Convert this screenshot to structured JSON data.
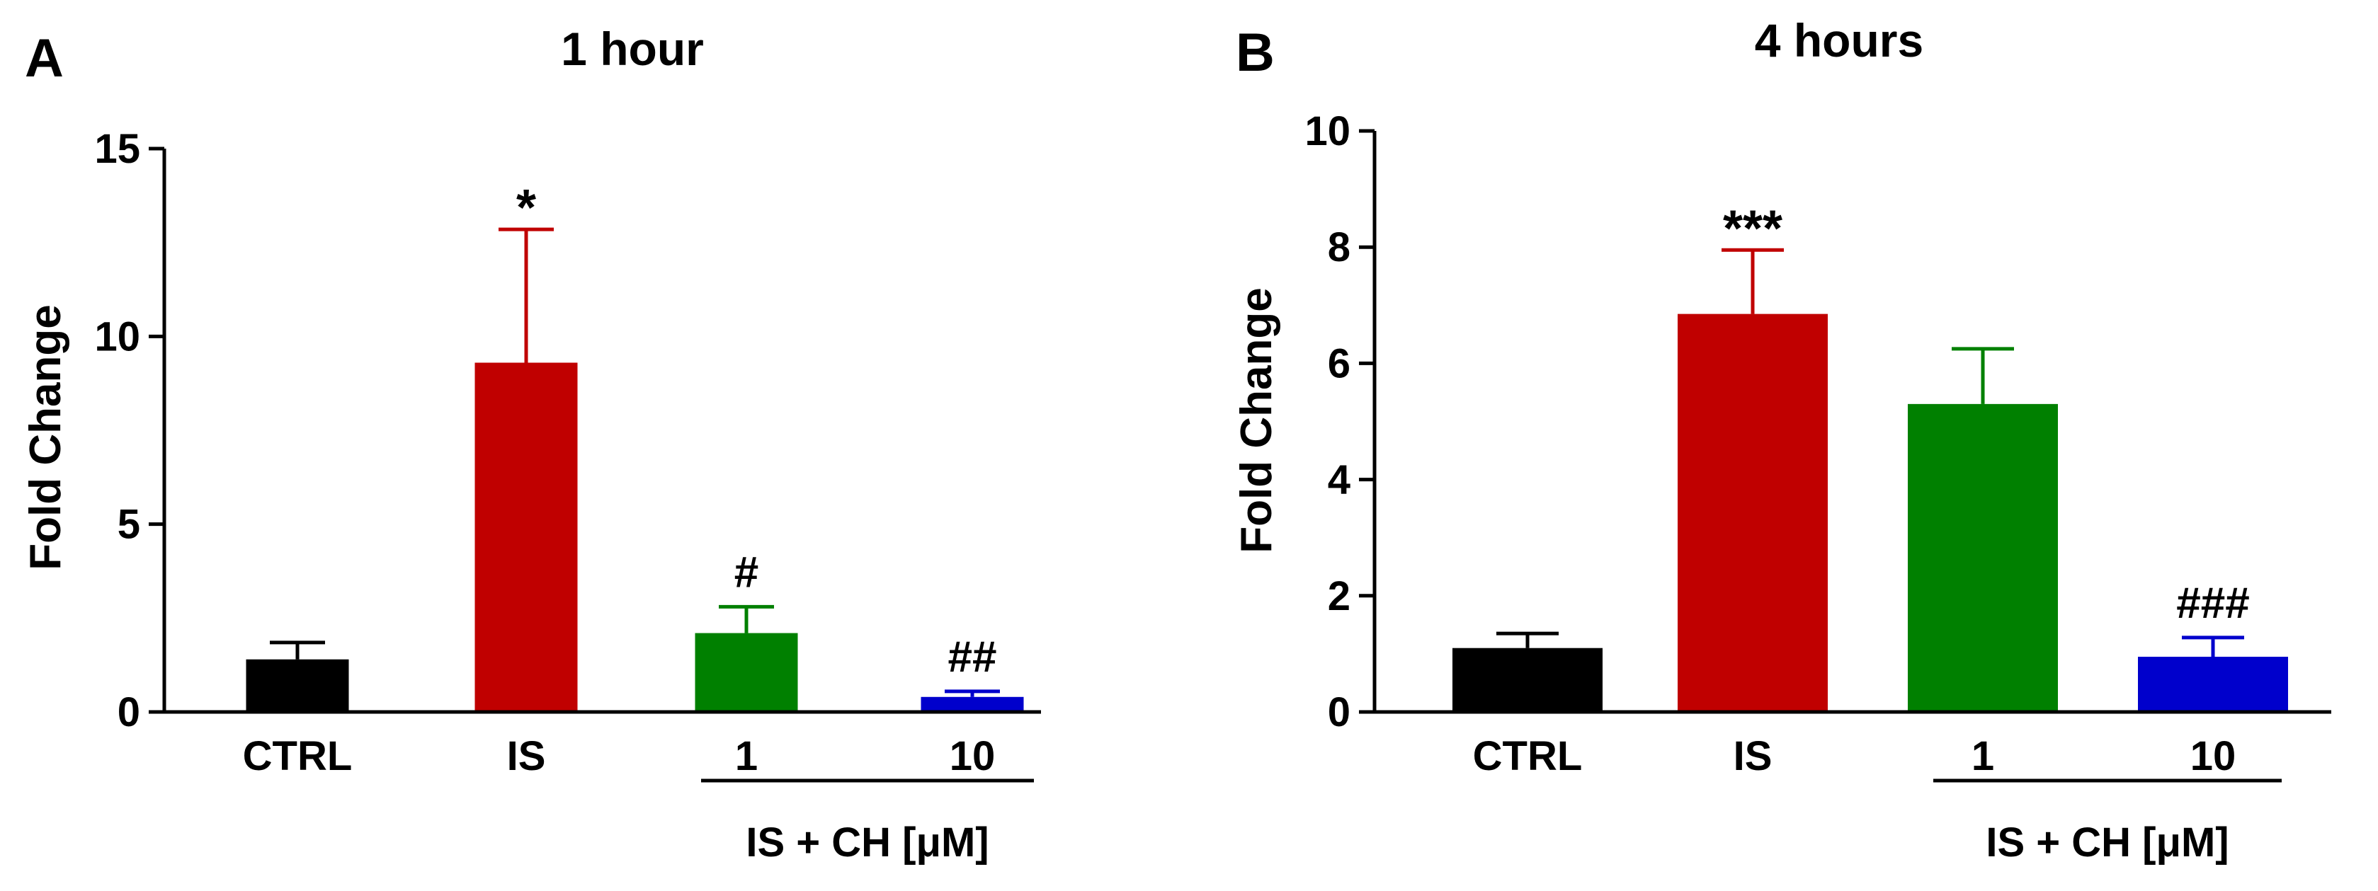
{
  "chart_data": [
    {
      "panel_label": "A",
      "type": "bar",
      "title": "1 hour",
      "xlabel": "",
      "ylabel": "Fold Change",
      "ylim": [
        0,
        15
      ],
      "yticks": [
        0,
        5,
        10,
        15
      ],
      "categories": [
        "CTRL",
        "IS",
        "1",
        "10"
      ],
      "values": [
        1.4,
        9.3,
        2.1,
        0.4
      ],
      "errors": [
        0.45,
        3.55,
        0.7,
        0.15
      ],
      "colors": [
        "#000000",
        "#c00000",
        "#008000",
        "#0000cc"
      ],
      "annotations": [
        "",
        "*",
        "#",
        "##"
      ],
      "group_label": "IS + CH [μM]"
    },
    {
      "panel_label": "B",
      "type": "bar",
      "title": "4 hours",
      "xlabel": "",
      "ylabel": "Fold Change",
      "ylim": [
        0,
        10
      ],
      "yticks": [
        0,
        2,
        4,
        6,
        8,
        10
      ],
      "categories": [
        "CTRL",
        "IS",
        "1",
        "10"
      ],
      "values": [
        1.1,
        6.85,
        5.3,
        0.95
      ],
      "errors": [
        0.25,
        1.1,
        0.95,
        0.33
      ],
      "colors": [
        "#000000",
        "#c00000",
        "#008000",
        "#0000cc"
      ],
      "annotations": [
        "",
        "***",
        "",
        "###"
      ],
      "group_label": "IS + CH [μM]"
    }
  ]
}
